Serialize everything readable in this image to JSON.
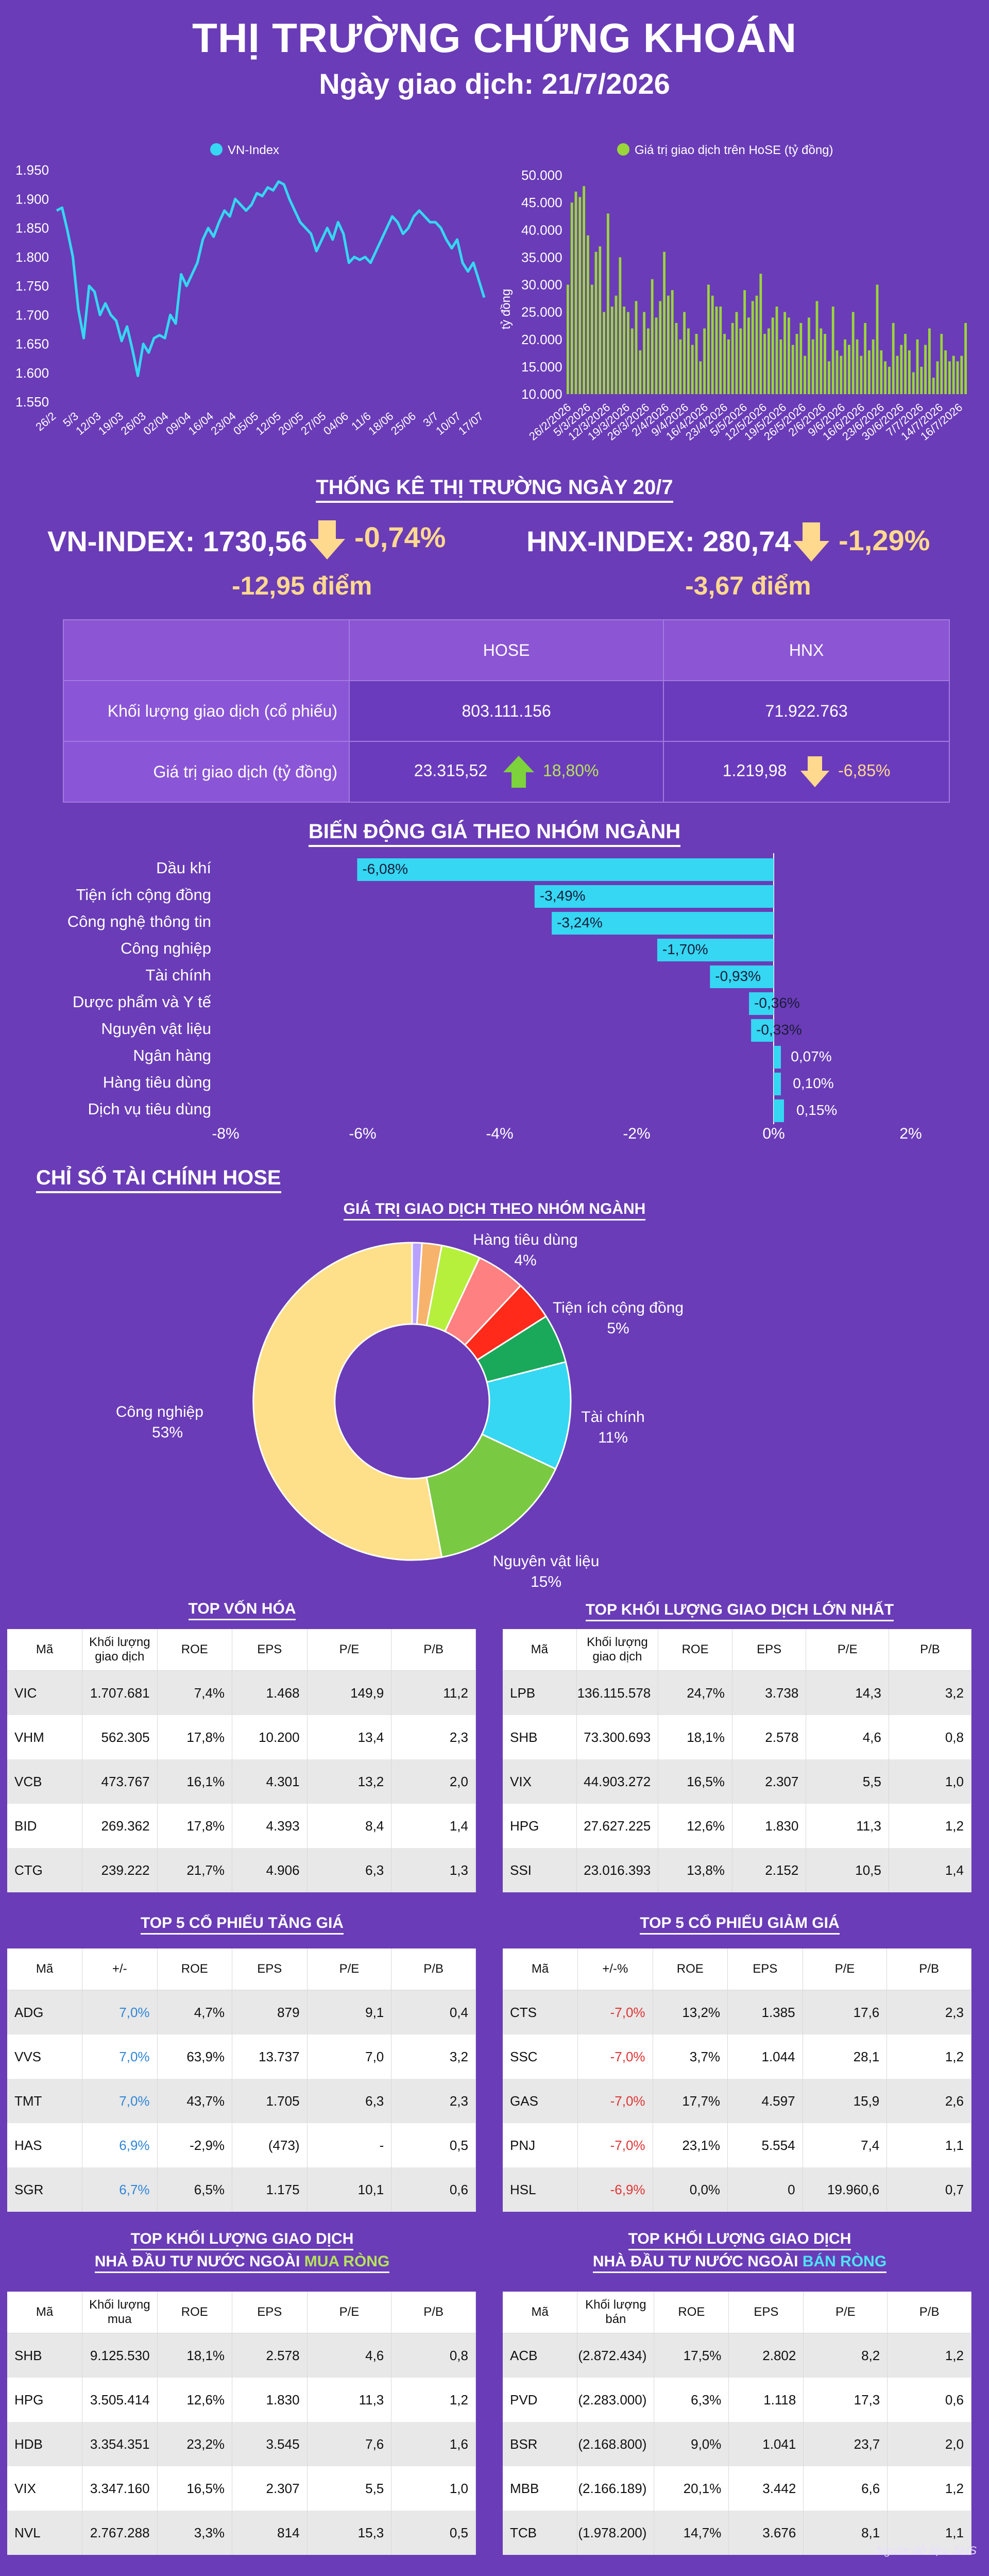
{
  "header": {
    "title": "THỊ TRƯỜNG CHỨNG KHOÁN",
    "subtitle": "Ngày giao dịch: 21/7/2026"
  },
  "colors": {
    "background": "#6a3cb7",
    "cyan": "#35d7f2",
    "green": "#9ad639",
    "up": "#7cd33b",
    "down": "#ffd98e"
  },
  "chart_data": [
    {
      "type": "line",
      "legend": "VN-Index",
      "x_ticks": [
        "26/2",
        "5/3",
        "12/03",
        "19/03",
        "26/03",
        "02/04",
        "09/04",
        "16/04",
        "23/04",
        "05/05",
        "12/05",
        "20/05",
        "27/05",
        "04/06",
        "11/6",
        "18/06",
        "25/06",
        "3/7",
        "10/07",
        "17/07"
      ],
      "ylim": [
        1550,
        1950
      ],
      "y_ticks": [
        "1.950",
        "1.900",
        "1.850",
        "1.800",
        "1.750",
        "1.700",
        "1.650",
        "1.600",
        "1.550"
      ],
      "values": [
        1880,
        1885,
        1845,
        1800,
        1710,
        1660,
        1750,
        1740,
        1700,
        1720,
        1700,
        1690,
        1655,
        1680,
        1640,
        1595,
        1650,
        1635,
        1660,
        1665,
        1660,
        1700,
        1685,
        1770,
        1750,
        1770,
        1790,
        1830,
        1850,
        1835,
        1860,
        1880,
        1870,
        1900,
        1890,
        1880,
        1890,
        1910,
        1905,
        1920,
        1915,
        1930,
        1925,
        1900,
        1880,
        1860,
        1850,
        1840,
        1810,
        1830,
        1850,
        1830,
        1860,
        1840,
        1790,
        1800,
        1795,
        1800,
        1790,
        1810,
        1830,
        1850,
        1870,
        1860,
        1840,
        1850,
        1870,
        1880,
        1870,
        1860,
        1860,
        1850,
        1830,
        1815,
        1830,
        1790,
        1775,
        1790,
        1760,
        1730
      ]
    },
    {
      "type": "bar",
      "legend": "Giá trị giao dịch trên HoSE (tỷ đồng)",
      "ylabel": "tỷ đồng",
      "x_ticks": [
        "26/2/2026",
        "5/3/2026",
        "12/3/2026",
        "19/3/2026",
        "26/3/2026",
        "2/4/2026",
        "9/4/2026",
        "16/4/2026",
        "23/4/2026",
        "5/5/2026",
        "12/5/2026",
        "19/5/2026",
        "26/5/2026",
        "2/6/2026",
        "9/6/2026",
        "16/6/2026",
        "23/6/2026",
        "30/6/2026",
        "7/7/2026",
        "14/7/2026",
        "16/7/2026"
      ],
      "ylim": [
        10000,
        50000
      ],
      "y_ticks": [
        "50.000",
        "45.000",
        "40.000",
        "35.000",
        "30.000",
        "25.000",
        "20.000",
        "15.000",
        "10.000"
      ],
      "values": [
        30000,
        45000,
        47000,
        46000,
        48000,
        39000,
        30000,
        36000,
        37000,
        25000,
        43000,
        26000,
        28000,
        35000,
        26000,
        25000,
        22000,
        27000,
        18000,
        25000,
        22000,
        31000,
        24000,
        27000,
        36000,
        28000,
        29000,
        23000,
        20000,
        25000,
        22000,
        19000,
        21000,
        16000,
        22000,
        30000,
        28000,
        26000,
        26000,
        21000,
        20000,
        23000,
        25000,
        22000,
        29000,
        24000,
        27000,
        28000,
        32000,
        21000,
        22000,
        24000,
        26000,
        20000,
        25000,
        24000,
        19000,
        21000,
        23000,
        17000,
        24000,
        20000,
        27000,
        22000,
        21000,
        16000,
        26000,
        18000,
        17000,
        20000,
        19000,
        25000,
        20000,
        17000,
        23000,
        18000,
        20000,
        30000,
        18000,
        16000,
        15000,
        23000,
        17000,
        19000,
        21000,
        18000,
        14000,
        20000,
        15000,
        19000,
        22000,
        13000,
        16000,
        21000,
        18000,
        16000,
        17000,
        16000,
        17000,
        23000
      ]
    },
    {
      "type": "bar",
      "orientation": "horizontal",
      "title": "BIẾN ĐỘNG GIÁ THEO NHÓM NGÀNH",
      "categories": [
        "Dầu khí",
        "Tiện ích cộng đồng",
        "Công nghệ thông tin",
        "Công nghiệp",
        "Tài chính",
        "Dược phẩm và Y tế",
        "Nguyên vật liệu",
        "Ngân hàng",
        "Hàng tiêu dùng",
        "Dịch vụ tiêu dùng"
      ],
      "values": [
        -6.08,
        -3.49,
        -3.24,
        -1.7,
        -0.93,
        -0.36,
        -0.33,
        0.07,
        0.1,
        0.15
      ],
      "labels": [
        "-6,08%",
        "-3,49%",
        "-3,24%",
        "-1,70%",
        "-0,93%",
        "-0,36%",
        "-0,33%",
        "0,07%",
        "0,10%",
        "0,15%"
      ],
      "xlim": [
        -8,
        2
      ],
      "x_ticks": [
        "-8%",
        "-6%",
        "-4%",
        "-2%",
        "0%",
        "2%"
      ]
    },
    {
      "type": "pie",
      "title": "GIÁ TRỊ GIAO DỊCH THEO NHÓM NGÀNH",
      "slices": [
        {
          "name": "Công nghiệp",
          "value": 53,
          "label": "Công nghiệp\n53%",
          "color": "#ffe08a"
        },
        {
          "name": "Nguyên vật liệu",
          "value": 15,
          "label": "Nguyên vật liệu\n15%",
          "color": "#7ac943"
        },
        {
          "name": "Tài chính",
          "value": 11,
          "label": "Tài chính\n11%",
          "color": "#35d7f2"
        },
        {
          "name": "",
          "value": 5,
          "label": "",
          "color": "#1aa85a"
        },
        {
          "name": "",
          "value": 4,
          "label": "",
          "color": "#ff2a1a"
        },
        {
          "name": "Tiện ích cộng đồng",
          "value": 5,
          "label": "Tiện ích cộng đồng\n5%",
          "color": "#ff8080"
        },
        {
          "name": "Hàng tiêu dùng",
          "value": 4,
          "label": "Hàng tiêu dùng\n4%",
          "color": "#b6f03c"
        },
        {
          "name": "",
          "value": 2,
          "label": "",
          "color": "#f7b36b"
        },
        {
          "name": "",
          "value": 1,
          "label": "",
          "color": "#b9a2ff"
        }
      ]
    }
  ],
  "stats": {
    "heading": "THỐNG KÊ THỊ TRƯỜNG NGÀY 20/7",
    "vn_index": "VN-INDEX: 1730,56",
    "vn_pct": "-0,74%",
    "vn_pts": "-12,95 điểm",
    "hnx_index": "HNX-INDEX: 280,74",
    "hnx_pct": "-1,29%",
    "hnx_pts": "-3,67 điểm",
    "col_hose": "HOSE",
    "col_hnx": "HNX",
    "row_volume_label": "Khối lượng giao dịch (cổ phiếu)",
    "row_value_label": "Giá trị giao dịch (tỷ đồng)",
    "hose_volume": "803.111.156",
    "hnx_volume": "71.922.763",
    "hose_value": "23.315,52",
    "hose_value_change": "18,80%",
    "hnx_value": "1.219,98",
    "hnx_value_change": "-6,85%"
  },
  "finance_heading": "CHỈ SỐ TÀI CHÍNH HOSE",
  "tables": {
    "top_cap": {
      "title": "TOP VỐN HÓA",
      "headers": [
        "Mã",
        "Khối lượng giao dịch",
        "ROE",
        "EPS",
        "P/E",
        "P/B"
      ],
      "rows": [
        [
          "VIC",
          "1.707.681",
          "7,4%",
          "1.468",
          "149,9",
          "11,2"
        ],
        [
          "VHM",
          "562.305",
          "17,8%",
          "10.200",
          "13,4",
          "2,3"
        ],
        [
          "VCB",
          "473.767",
          "16,1%",
          "4.301",
          "13,2",
          "2,0"
        ],
        [
          "BID",
          "269.362",
          "17,8%",
          "4.393",
          "8,4",
          "1,4"
        ],
        [
          "CTG",
          "239.222",
          "21,7%",
          "4.906",
          "6,3",
          "1,3"
        ]
      ]
    },
    "top_volume": {
      "title": "TOP KHỐI LƯỢNG GIAO DỊCH LỚN NHẤT",
      "headers": [
        "Mã",
        "Khối lượng giao dịch",
        "ROE",
        "EPS",
        "P/E",
        "P/B"
      ],
      "rows": [
        [
          "LPB",
          "136.115.578",
          "24,7%",
          "3.738",
          "14,3",
          "3,2"
        ],
        [
          "SHB",
          "73.300.693",
          "18,1%",
          "2.578",
          "4,6",
          "0,8"
        ],
        [
          "VIX",
          "44.903.272",
          "16,5%",
          "2.307",
          "5,5",
          "1,0"
        ],
        [
          "HPG",
          "27.627.225",
          "12,6%",
          "1.830",
          "11,3",
          "1,2"
        ],
        [
          "SSI",
          "23.016.393",
          "13,8%",
          "2.152",
          "10,5",
          "1,4"
        ]
      ]
    },
    "top_gain": {
      "title": "TOP 5 CỔ PHIẾU TĂNG GIÁ",
      "headers": [
        "Mã",
        "+/-",
        "ROE",
        "EPS",
        "P/E",
        "P/B"
      ],
      "rows": [
        [
          "ADG",
          "7,0%",
          "4,7%",
          "879",
          "9,1",
          "0,4"
        ],
        [
          "VVS",
          "7,0%",
          "63,9%",
          "13.737",
          "7,0",
          "3,2"
        ],
        [
          "TMT",
          "7,0%",
          "43,7%",
          "1.705",
          "6,3",
          "2,3"
        ],
        [
          "HAS",
          "6,9%",
          "-2,9%",
          "(473)",
          "-",
          "0,5"
        ],
        [
          "SGR",
          "6,7%",
          "6,5%",
          "1.175",
          "10,1",
          "0,6"
        ]
      ]
    },
    "top_loss": {
      "title": "TOP 5 CỔ PHIẾU GIẢM GIÁ",
      "headers": [
        "Mã",
        "+/-%",
        "ROE",
        "EPS",
        "P/E",
        "P/B"
      ],
      "rows": [
        [
          "CTS",
          "-7,0%",
          "13,2%",
          "1.385",
          "17,6",
          "2,3"
        ],
        [
          "SSC",
          "-7,0%",
          "3,7%",
          "1.044",
          "28,1",
          "1,2"
        ],
        [
          "GAS",
          "-7,0%",
          "17,7%",
          "4.597",
          "15,9",
          "2,6"
        ],
        [
          "PNJ",
          "-7,0%",
          "23,1%",
          "5.554",
          "7,4",
          "1,1"
        ],
        [
          "HSL",
          "-6,9%",
          "0,0%",
          "0",
          "19.960,6",
          "0,7"
        ]
      ]
    },
    "foreign_buy": {
      "title_line1": "TOP KHỐI LƯỢNG GIAO DỊCH",
      "title_line2": "NHÀ ĐẦU TƯ NƯỚC NGOÀI ",
      "title_highlight": "MUA RÒNG",
      "headers": [
        "Mã",
        "Khối lượng mua",
        "ROE",
        "EPS",
        "P/E",
        "P/B"
      ],
      "rows": [
        [
          "SHB",
          "9.125.530",
          "18,1%",
          "2.578",
          "4,6",
          "0,8"
        ],
        [
          "HPG",
          "3.505.414",
          "12,6%",
          "1.830",
          "11,3",
          "1,2"
        ],
        [
          "HDB",
          "3.354.351",
          "23,2%",
          "3.545",
          "7,6",
          "1,6"
        ],
        [
          "VIX",
          "3.347.160",
          "16,5%",
          "2.307",
          "5,5",
          "1,0"
        ],
        [
          "NVL",
          "2.767.288",
          "3,3%",
          "814",
          "15,3",
          "0,5"
        ]
      ]
    },
    "foreign_sell": {
      "title_line1": "TOP KHỐI LƯỢNG GIAO DỊCH",
      "title_line2": "NHÀ ĐẦU TƯ NƯỚC NGOÀI ",
      "title_highlight": "BÁN RÒNG",
      "headers": [
        "Mã",
        "Khối lượng bán",
        "ROE",
        "EPS",
        "P/E",
        "P/B"
      ],
      "rows": [
        [
          "ACB",
          "(2.872.434)",
          "17,5%",
          "2.802",
          "8,2",
          "1,2"
        ],
        [
          "PVD",
          "(2.283.000)",
          "6,3%",
          "1.118",
          "17,3",
          "0,6"
        ],
        [
          "BSR",
          "(2.168.800)",
          "9,0%",
          "1.041",
          "23,7",
          "2,0"
        ],
        [
          "MBB",
          "(2.166.189)",
          "20,1%",
          "3.442",
          "6,6",
          "1,2"
        ],
        [
          "TCB",
          "(1.978.200)",
          "14,7%",
          "3.676",
          "8,1",
          "1,1"
        ]
      ]
    }
  },
  "source": "Nguồn dữ liệu: SHS"
}
